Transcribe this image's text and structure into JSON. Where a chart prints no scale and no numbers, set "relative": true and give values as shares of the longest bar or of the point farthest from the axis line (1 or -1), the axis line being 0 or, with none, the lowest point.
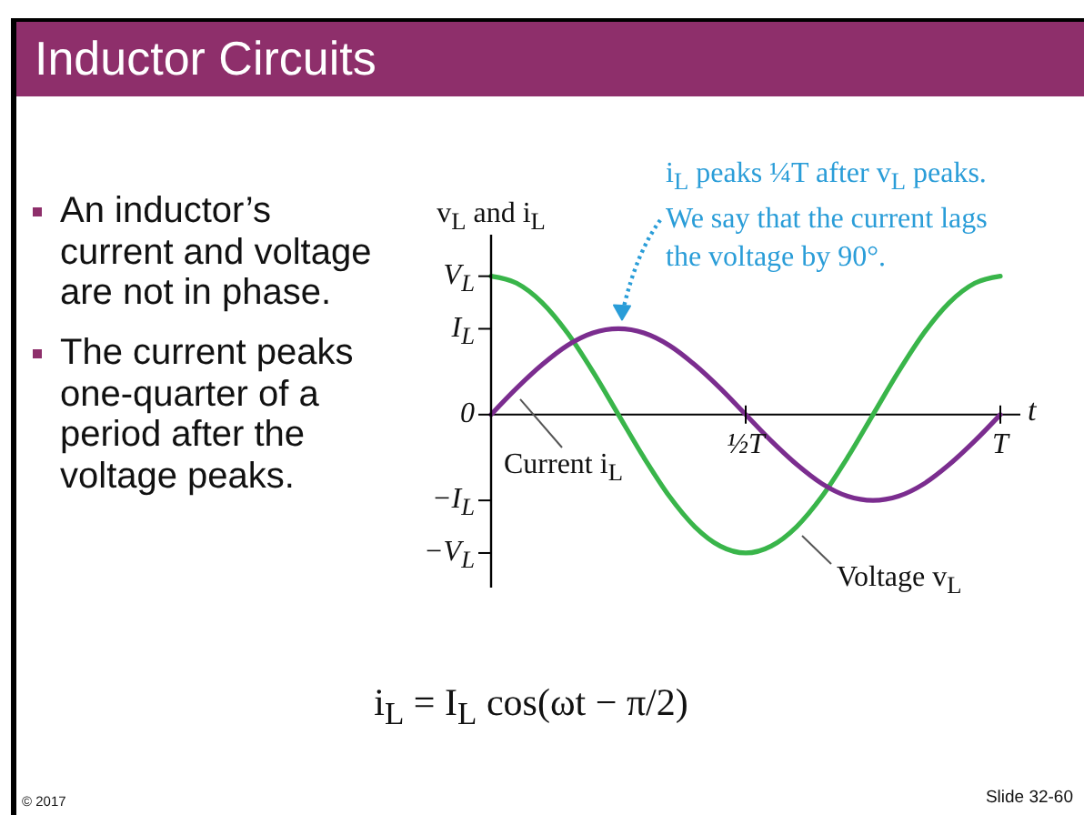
{
  "chart_data": {
    "type": "line",
    "relative": true,
    "title": "Inductor Circuits",
    "xlabel": "t",
    "ylabel": "v$_{L}$ and i$_{L}$",
    "categories": [
      null,
      null,
      null,
      null,
      null,
      null,
      null,
      null,
      null,
      null,
      "½T",
      null,
      null,
      null,
      null,
      null,
      null,
      null,
      null,
      null,
      "T"
    ],
    "series": [
      {
        "name": "Voltage v$_{L}$",
        "color": "#39b54a",
        "values": [
          1,
          0.95,
          0.81,
          0.59,
          0.31,
          0,
          -0.31,
          -0.59,
          -0.81,
          -0.95,
          -1,
          -0.95,
          -0.81,
          -0.59,
          -0.31,
          0,
          0.31,
          0.59,
          0.81,
          0.95,
          1
        ]
      },
      {
        "name": "Current i$_{L}$",
        "color": "#7b2d8f",
        "values": [
          0,
          0.19,
          0.36,
          0.5,
          0.59,
          0.62,
          0.59,
          0.5,
          0.36,
          0.19,
          0,
          -0.19,
          -0.36,
          -0.5,
          -0.59,
          -0.62,
          -0.59,
          -0.5,
          -0.36,
          -0.19,
          0
        ]
      }
    ],
    "marker": "none",
    "annotations": [
      "i$_{L}$ peaks ¼T after v$_{L}$ peaks. We say that the current lags the voltage by 90°.",
      "V$_{L}$",
      "I$_{L}$",
      "0",
      "−I$_{L}$",
      "−V$_{L}$",
      "An inductor’s current and voltage are not in phase.",
      "The current peaks one-quarter of a period after the voltage peaks.",
      "i$_{L}$ = I$_{L}$ cos(ωt − π/2)",
      "© 2017",
      "Slide 32-60"
    ]
  }
}
